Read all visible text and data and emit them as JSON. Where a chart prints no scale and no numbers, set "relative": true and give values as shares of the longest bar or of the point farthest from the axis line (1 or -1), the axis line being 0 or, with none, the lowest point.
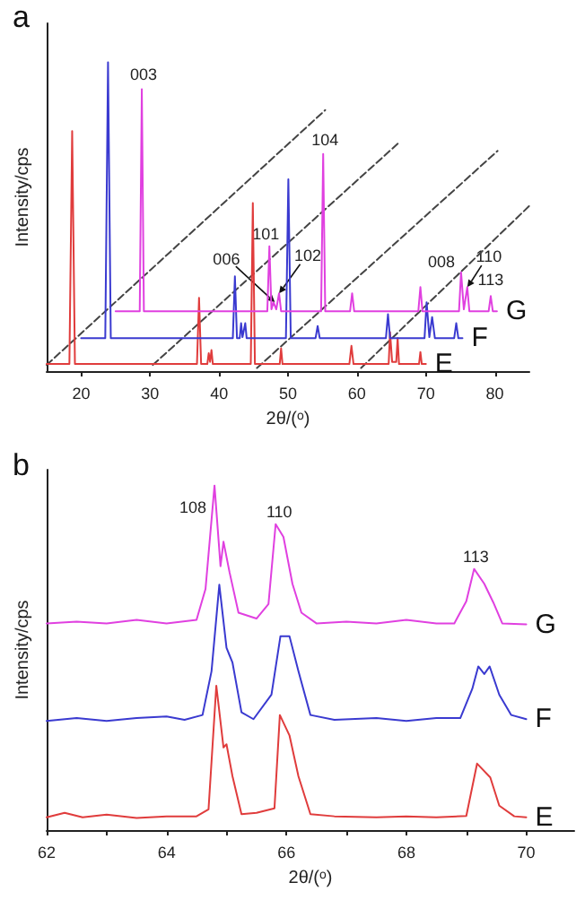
{
  "chart_data": [
    {
      "type": "line",
      "title": "a",
      "xlabel": "2θ/($^{o}$)",
      "ylabel": "Intensity/cps",
      "relative": true,
      "tick_labels": "x",
      "marker": "none",
      "line_style": "solid",
      "xlim": [
        15,
        85
      ],
      "xticks": [
        20,
        30,
        40,
        50,
        60,
        70,
        80
      ],
      "series": [
        {
          "name": "E",
          "color": "#e03c3c",
          "x": [
            15,
            18.3,
            18.7,
            19.1,
            36.8,
            37.1,
            37.4,
            38.3,
            38.5,
            38.7,
            38.9,
            39.1,
            44.6,
            44.9,
            45.2,
            48.8,
            49.0,
            49.2,
            58.9,
            59.2,
            59.5,
            64.6,
            64.8,
            65.1,
            65.7,
            65.9,
            66.1,
            69,
            69.2,
            69.4,
            70
          ],
          "values": [
            0.023,
            0.023,
            0.777,
            0.023,
            0.023,
            0.237,
            0.023,
            0.023,
            0.058,
            0.03,
            0.068,
            0.023,
            0.023,
            0.544,
            0.023,
            0.023,
            0.074,
            0.023,
            0.023,
            0.082,
            0.023,
            0.023,
            0.126,
            0.03,
            0.03,
            0.107,
            0.023,
            0.023,
            0.062,
            0.023,
            0.023
          ]
        },
        {
          "name": "F",
          "color": "#3a3ad0",
          "x": [
            20,
            23.5,
            23.9,
            24.3,
            42.0,
            42.3,
            42.6,
            43.0,
            43.2,
            43.4,
            43.8,
            44.0,
            49.7,
            50.05,
            50.4,
            54.0,
            54.3,
            54.6,
            64.2,
            64.5,
            64.8,
            69.8,
            70.1,
            70.5,
            70.9,
            71.3,
            74.1,
            74.4,
            74.7,
            75.3
          ],
          "values": [
            0.107,
            0.107,
            1,
            0.107,
            0.107,
            0.307,
            0.107,
            0.107,
            0.155,
            0.11,
            0.155,
            0.107,
            0.107,
            0.621,
            0.107,
            0.107,
            0.146,
            0.107,
            0.107,
            0.184,
            0.107,
            0.107,
            0.223,
            0.11,
            0.175,
            0.107,
            0.107,
            0.155,
            0.107,
            0.107
          ]
        },
        {
          "name": "G",
          "color": "#e040e0",
          "x": [
            25,
            28.5,
            28.8,
            29.1,
            47.0,
            47.3,
            47.6,
            47.9,
            48.3,
            48.7,
            49.0,
            54.8,
            55.1,
            55.4,
            59.0,
            59.3,
            59.6,
            68.9,
            69.2,
            69.5,
            74.8,
            75.1,
            75.5,
            76.0,
            76.3,
            79.1,
            79.4,
            79.7,
            80.3
          ],
          "values": [
            0.194,
            0.194,
            0.913,
            0.194,
            0.194,
            0.404,
            0.2,
            0.223,
            0.2,
            0.252,
            0.194,
            0.194,
            0.703,
            0.194,
            0.194,
            0.252,
            0.194,
            0.194,
            0.272,
            0.194,
            0.194,
            0.32,
            0.2,
            0.272,
            0.194,
            0.194,
            0.243,
            0.194,
            0.194
          ]
        },
        {
          "color": "#444444",
          "line_style": "dashed",
          "x": [
            15,
            55.4
          ],
          "values": [
            0.02,
            0.845
          ]
        },
        {
          "color": "#444444",
          "line_style": "dashed",
          "x": [
            30.4,
            66.2
          ],
          "values": [
            0.02,
            0.742
          ]
        },
        {
          "color": "#444444",
          "line_style": "dashed",
          "x": [
            45.5,
            80.4
          ],
          "values": [
            0.01,
            0.713
          ]
        },
        {
          "color": "#444444",
          "line_style": "dashed",
          "x": [
            60.6,
            85
          ],
          "values": [
            0.01,
            0.535
          ]
        }
      ],
      "annotations": [
        {
          "text": "003",
          "x": 28.8,
          "y": 0.913
        },
        {
          "text": "104",
          "x": 55.1,
          "y": 0.703
        },
        {
          "text": "101",
          "x": 47.3,
          "y": 0.404
        },
        {
          "text": "006",
          "x": 48.1,
          "y": 0.223
        },
        {
          "text": "102",
          "x": 48.7,
          "y": 0.252
        },
        {
          "text": "008",
          "x": 75.1,
          "y": 0.32
        },
        {
          "text": "110",
          "x": 76.0,
          "y": 0.272
        },
        {
          "text": "113",
          "x": 79.4,
          "y": 0.243
        }
      ]
    },
    {
      "type": "line",
      "title": "b",
      "xlabel": "2θ/($^{o}$)",
      "ylabel": "Intensity/cps",
      "relative": true,
      "tick_labels": "x",
      "marker": "none",
      "line_style": "solid",
      "xlim": [
        62,
        70.8
      ],
      "xticks": [
        62,
        {
          "value": 63,
          "label": null
        },
        64,
        {
          "value": 65,
          "label": null
        },
        66,
        {
          "value": 67,
          "label": null
        },
        68,
        {
          "value": 69,
          "label": null
        },
        70
      ],
      "series": [
        {
          "name": "E",
          "color": "#e03c3c",
          "x": [
            62,
            62.3,
            62.6,
            63.0,
            63.5,
            64.0,
            64.5,
            64.7,
            64.83,
            64.95,
            65.0,
            65.1,
            65.25,
            65.5,
            65.8,
            65.89,
            66.05,
            66.2,
            66.4,
            66.8,
            67.5,
            68.0,
            68.5,
            69.0,
            69.18,
            69.4,
            69.55,
            69.8,
            70
          ],
          "values": [
            0.037,
            0.05,
            0.037,
            0.045,
            0.035,
            0.04,
            0.04,
            0.06,
            0.419,
            0.24,
            0.249,
            0.156,
            0.046,
            0.05,
            0.063,
            0.334,
            0.275,
            0.156,
            0.046,
            0.04,
            0.037,
            0.04,
            0.037,
            0.041,
            0.193,
            0.153,
            0.071,
            0.04,
            0.037
          ]
        },
        {
          "name": "F",
          "color": "#3a3ad0",
          "x": [
            62,
            62.5,
            63.0,
            63.5,
            64.0,
            64.3,
            64.6,
            64.75,
            64.88,
            65.0,
            65.1,
            65.25,
            65.45,
            65.75,
            65.9,
            66.05,
            66.2,
            66.4,
            66.8,
            67.5,
            68.0,
            68.5,
            68.9,
            69.1,
            69.2,
            69.3,
            69.39,
            69.55,
            69.75,
            70
          ],
          "values": [
            0.317,
            0.325,
            0.317,
            0.325,
            0.33,
            0.32,
            0.334,
            0.461,
            0.712,
            0.529,
            0.486,
            0.342,
            0.322,
            0.393,
            0.563,
            0.563,
            0.461,
            0.334,
            0.32,
            0.325,
            0.317,
            0.325,
            0.325,
            0.41,
            0.475,
            0.453,
            0.475,
            0.393,
            0.334,
            0.322
          ]
        },
        {
          "name": "G",
          "color": "#e040e0",
          "x": [
            62,
            62.5,
            63.0,
            63.5,
            64.0,
            64.5,
            64.65,
            64.8,
            64.9,
            64.95,
            65.05,
            65.2,
            65.5,
            65.7,
            65.82,
            65.95,
            66.1,
            66.25,
            66.5,
            67.0,
            67.5,
            68.0,
            68.5,
            68.8,
            69.0,
            69.13,
            69.3,
            69.45,
            69.6,
            70
          ],
          "values": [
            0.6,
            0.605,
            0.6,
            0.61,
            0.6,
            0.61,
            0.7,
            1,
            0.766,
            0.837,
            0.749,
            0.631,
            0.614,
            0.656,
            0.888,
            0.851,
            0.715,
            0.631,
            0.6,
            0.605,
            0.6,
            0.61,
            0.6,
            0.6,
            0.664,
            0.758,
            0.715,
            0.661,
            0.6,
            0.597
          ]
        }
      ],
      "annotations": [
        {
          "text": "108",
          "x": 64.8,
          "y": 1
        },
        {
          "text": "110",
          "x": 65.82,
          "y": 0.888
        },
        {
          "text": "113",
          "x": 69.13,
          "y": 0.758
        }
      ]
    }
  ]
}
